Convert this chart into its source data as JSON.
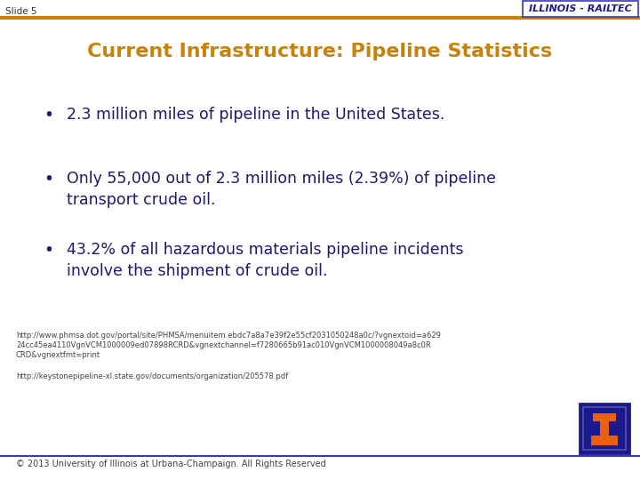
{
  "slide_label": "Slide 5",
  "header_text": "ILLINOIS - RAILTEC",
  "title": "Current Infrastructure: Pipeline Statistics",
  "bullets": [
    "2.3 million miles of pipeline in the United States.",
    "Only 55,000 out of 2.3 million miles (2.39%) of pipeline\ntransport crude oil.",
    "43.2% of all hazardous materials pipeline incidents\ninvolve the shipment of crude oil."
  ],
  "ref1": "http://www.phmsa.dot.gov/portal/site/PHMSA/menuitem.ebdc7a8a7e39f2e55cf2031050248a0c/?vgnextoid=a629\n24cc45ea4110VgnVCM1000009ed07898RCRD&vgnextchannel=f7280665b91ac010VgnVCM1000008049a8c0R\nCRD&vgnextfmt=print",
  "ref2": "http://keystonepipeline-xl.state.gov/documents/organization/205578.pdf",
  "footer": "© 2013 University of Illinois at Urbana-Champaign. All Rights Reserved",
  "bg_color": "#ffffff",
  "header_line_color": "#c8820a",
  "footer_line_color": "#3a3aaa",
  "title_color": "#c8820a",
  "bullet_color": "#1a1a6e",
  "header_box_bg": "#ffffff",
  "header_box_border": "#3a3aaa",
  "header_text_color": "#1a1a8e",
  "slide_label_color": "#333333",
  "ref_color": "#444444",
  "footer_color": "#444444",
  "logo_box_outer": "#1a1a8e",
  "logo_box_inner_border": "#5555aa",
  "logo_icon_color": "#e86010"
}
